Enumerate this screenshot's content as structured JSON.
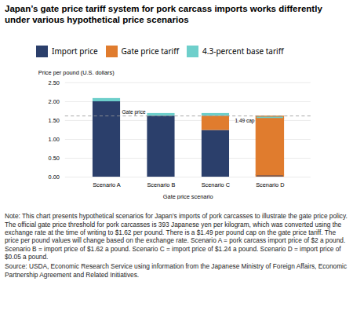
{
  "chart_data": {
    "type": "bar",
    "stacked": true,
    "title": "Japan’s gate price tariff system for pork carcass imports works differently under various hypothetical price scenarios",
    "ylabel": "Price per pound (U.S. dollars)",
    "xlabel": "Gate price scenario",
    "categories": [
      "Scenario A",
      "Scenario B",
      "Scenario C",
      "Scenario D"
    ],
    "series": [
      {
        "name": "Import price",
        "color": "#2b3f6b",
        "values": [
          2.0,
          1.62,
          1.24,
          0.05
        ]
      },
      {
        "name": "Gate price tariff",
        "color": "#e07c2e",
        "values": [
          0.0,
          0.0,
          0.38,
          1.49
        ]
      },
      {
        "name": "4.3-percent base tariff",
        "color": "#6ecfcb",
        "values": [
          0.086,
          0.0697,
          0.0697,
          0.066
        ]
      }
    ],
    "ylim": [
      0,
      2.5
    ],
    "yticks": [
      {
        "value": 0,
        "label": "0.00"
      },
      {
        "value": 0.5,
        "label": "0.50"
      },
      {
        "value": 1.0,
        "label": "1.00"
      },
      {
        "value": 1.5,
        "label": "1.50"
      },
      {
        "value": 2.0,
        "label": "2.00"
      },
      {
        "value": 2.5,
        "label": "2.50"
      }
    ],
    "grid": true,
    "legend": "upper left",
    "annotations": [
      {
        "text": "Gate price",
        "y": 1.62,
        "category": "Scenario B",
        "line_style": "dashed",
        "color": "#999999"
      },
      {
        "text": "1.49 cap",
        "y": 1.49,
        "category": "Scenario D"
      }
    ],
    "outline": {
      "category": "Scenario D",
      "color": "#e07c2e"
    },
    "caption": "Note: This chart presents hypothetical scenarios for Japan’s imports of pork carcasses to illustrate the gate price policy. The official gate price threshold for pork carcasses is 393 Japanese yen per kilogram, which was converted using the exchange rate at the time of writing to $1.62 per pound. There is a $1.49 per pound cap on the gate price tariff. The price per pound values will change based on the exchange rate. Scenario A = pork carcass import price of $2 a pound. Scenario B = import price of $1.62 a pound. Scenario C = import price of $1.24 a pound. Scenario D = import price of $0.05 a pound.",
    "source": "Source: USDA, Economic Research Service using information from the Japanese Ministry of Foreign Affairs, Economic Partnership Agreement and Related Initiatives."
  }
}
